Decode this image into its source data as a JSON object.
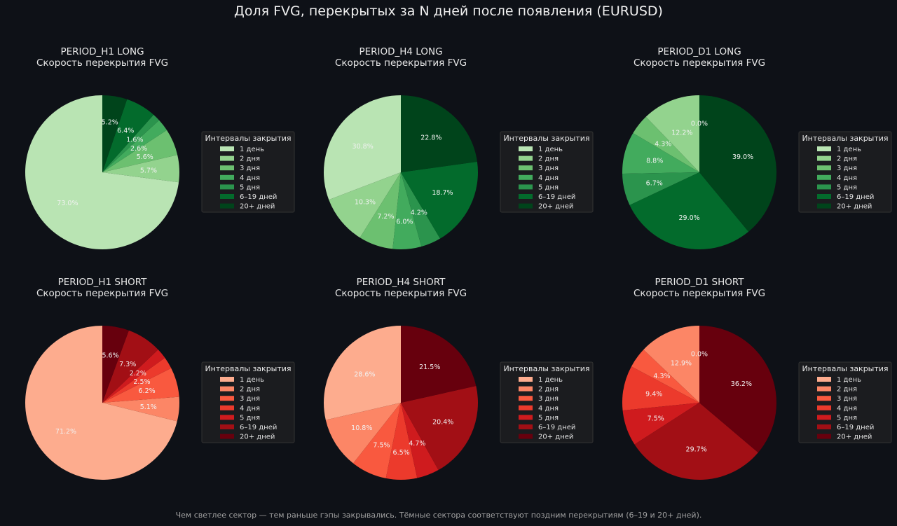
{
  "title": "Доля FVG, перекрытых за N дней после появления (EURUSD)",
  "footer": "Чем светлее сектор — тем раньше гэпы закрывались. Тёмные сектора соответствуют поздним перекрытиям (6–19 и 20+ дней).",
  "colors": {
    "background": "#0e1117",
    "greens": [
      "#b9e4b3",
      "#93d38e",
      "#6cc070",
      "#42ab5d",
      "#2b944d",
      "#036b2c",
      "#00441b"
    ],
    "reds": [
      "#fdac8e",
      "#fc8666",
      "#f9593f",
      "#ec3a2c",
      "#cf1b1e",
      "#a20f15",
      "#67000d"
    ]
  },
  "chart_data": [
    {
      "type": "pie",
      "title": "PERIOD_H1 LONG",
      "subtitle": "Скорость перекрытия FVG",
      "palette": "greens",
      "start_angle": 90,
      "direction": "counterclockwise",
      "legend_title": "Интервалы закрытия",
      "legend_placement": "right",
      "categories": [
        "1 день",
        "2 дня",
        "3 дня",
        "4 дня",
        "5 дня",
        "6–19 дней",
        "20+ дней"
      ],
      "values": [
        73.0,
        5.7,
        5.6,
        2.6,
        1.6,
        6.4,
        5.2
      ],
      "labels": [
        "73.0%",
        "5.7%",
        "5.6%",
        "2.6%",
        "1.6%",
        "6.4%",
        "5.2%"
      ]
    },
    {
      "type": "pie",
      "title": "PERIOD_H4 LONG",
      "subtitle": "Скорость перекрытия FVG",
      "palette": "greens",
      "start_angle": 90,
      "direction": "counterclockwise",
      "legend_title": "Интервалы закрытия",
      "legend_placement": "right",
      "categories": [
        "1 день",
        "2 дня",
        "3 дня",
        "4 дня",
        "5 дня",
        "6–19 дней",
        "20+ дней"
      ],
      "values": [
        30.8,
        10.3,
        7.2,
        6.0,
        4.2,
        18.7,
        22.8
      ],
      "labels": [
        "30.8%",
        "10.3%",
        "7.2%",
        "6.0%",
        "4.2%",
        "18.7%",
        "22.8%"
      ]
    },
    {
      "type": "pie",
      "title": "PERIOD_D1 LONG",
      "subtitle": "Скорость перекрытия FVG",
      "palette": "greens",
      "start_angle": 90,
      "direction": "counterclockwise",
      "legend_title": "Интервалы закрытия",
      "legend_placement": "right",
      "categories": [
        "1 день",
        "2 дня",
        "3 дня",
        "4 дня",
        "5 дня",
        "6–19 дней",
        "20+ дней"
      ],
      "values": [
        0.0,
        12.2,
        4.3,
        8.8,
        6.7,
        29.0,
        39.0
      ],
      "labels": [
        "0.0%",
        "12.2%",
        "4.3%",
        "8.8%",
        "6.7%",
        "29.0%",
        "39.0%"
      ]
    },
    {
      "type": "pie",
      "title": "PERIOD_H1 SHORT",
      "subtitle": "Скорость перекрытия FVG",
      "palette": "reds",
      "start_angle": 90,
      "direction": "counterclockwise",
      "legend_title": "Интервалы закрытия",
      "legend_placement": "right",
      "categories": [
        "1 день",
        "2 дня",
        "3 дня",
        "4 дня",
        "5 дня",
        "6–19 дней",
        "20+ дней"
      ],
      "values": [
        71.2,
        5.1,
        6.2,
        2.5,
        2.2,
        7.3,
        5.6
      ],
      "labels": [
        "71.2%",
        "5.1%",
        "6.2%",
        "2.5%",
        "2.2%",
        "7.3%",
        "5.6%"
      ]
    },
    {
      "type": "pie",
      "title": "PERIOD_H4 SHORT",
      "subtitle": "Скорость перекрытия FVG",
      "palette": "reds",
      "start_angle": 90,
      "direction": "counterclockwise",
      "legend_title": "Интервалы закрытия",
      "legend_placement": "right",
      "categories": [
        "1 день",
        "2 дня",
        "3 дня",
        "4 дня",
        "5 дня",
        "6–19 дней",
        "20+ дней"
      ],
      "values": [
        28.6,
        10.8,
        7.5,
        6.5,
        4.7,
        20.4,
        21.5
      ],
      "labels": [
        "28.6%",
        "10.8%",
        "7.5%",
        "6.5%",
        "4.7%",
        "20.4%",
        "21.5%"
      ]
    },
    {
      "type": "pie",
      "title": "PERIOD_D1 SHORT",
      "subtitle": "Скорость перекрытия FVG",
      "palette": "reds",
      "start_angle": 90,
      "direction": "counterclockwise",
      "legend_title": "Интервалы закрытия",
      "legend_placement": "right",
      "categories": [
        "1 день",
        "2 дня",
        "3 дня",
        "4 дня",
        "5 дня",
        "6–19 дней",
        "20+ дней"
      ],
      "values": [
        0.0,
        12.9,
        4.3,
        9.4,
        7.5,
        29.7,
        36.2
      ],
      "labels": [
        "0.0%",
        "12.9%",
        "4.3%",
        "9.4%",
        "7.5%",
        "29.7%",
        "36.2%"
      ]
    }
  ]
}
